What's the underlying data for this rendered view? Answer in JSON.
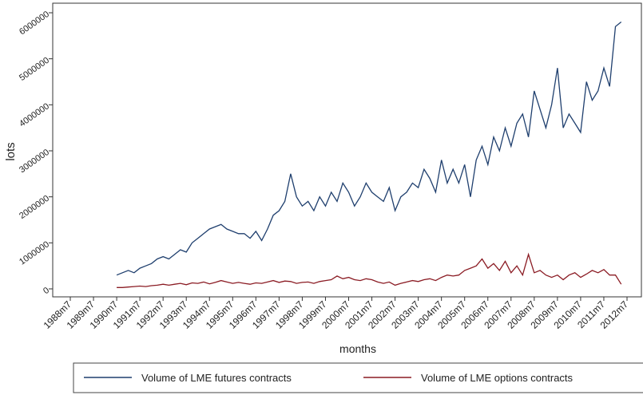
{
  "chart_data": {
    "type": "line",
    "x_label": "months",
    "y_label": "lots",
    "x": [
      366,
      369,
      372,
      375,
      378,
      381,
      384,
      387,
      390,
      393,
      396,
      399,
      402,
      405,
      408,
      411,
      414,
      417,
      420,
      423,
      426,
      429,
      432,
      435,
      438,
      441,
      444,
      447,
      450,
      453,
      456,
      459,
      462,
      465,
      468,
      471,
      474,
      477,
      480,
      483,
      486,
      489,
      492,
      495,
      498,
      501,
      504,
      507,
      510,
      513,
      516,
      519,
      522,
      525,
      528,
      531,
      534,
      537,
      540,
      543,
      546,
      549,
      552,
      555,
      558,
      561,
      564,
      567,
      570,
      573,
      576,
      579,
      582,
      585,
      588,
      591,
      594,
      597,
      600,
      603,
      606,
      609,
      612,
      615,
      618,
      621,
      624,
      627
    ],
    "series": [
      {
        "name": "Volume of LME futures contracts",
        "color": "#1f3f6e",
        "values": [
          300000,
          350000,
          400000,
          350000,
          450000,
          500000,
          550000,
          650000,
          700000,
          650000,
          750000,
          850000,
          800000,
          1000000,
          1100000,
          1200000,
          1300000,
          1350000,
          1400000,
          1300000,
          1250000,
          1200000,
          1200000,
          1100000,
          1250000,
          1050000,
          1300000,
          1600000,
          1700000,
          1900000,
          2500000,
          2000000,
          1800000,
          1900000,
          1700000,
          2000000,
          1800000,
          2100000,
          1900000,
          2300000,
          2100000,
          1800000,
          2000000,
          2300000,
          2100000,
          2000000,
          1900000,
          2200000,
          1700000,
          2000000,
          2100000,
          2300000,
          2200000,
          2600000,
          2400000,
          2100000,
          2800000,
          2300000,
          2600000,
          2300000,
          2700000,
          2000000,
          2800000,
          3100000,
          2700000,
          3300000,
          3000000,
          3500000,
          3100000,
          3600000,
          3800000,
          3300000,
          4300000,
          3900000,
          3500000,
          4000000,
          4800000,
          3500000,
          3800000,
          3600000,
          3400000,
          4500000,
          4100000,
          4300000,
          4800000,
          4400000,
          5700000,
          5800000
        ]
      },
      {
        "name": "Volume of LME options contracts",
        "color": "#8b1c24",
        "values": [
          30000,
          30000,
          40000,
          50000,
          60000,
          50000,
          70000,
          80000,
          100000,
          80000,
          100000,
          120000,
          90000,
          130000,
          120000,
          150000,
          110000,
          140000,
          180000,
          150000,
          120000,
          140000,
          120000,
          100000,
          130000,
          120000,
          150000,
          180000,
          140000,
          170000,
          160000,
          120000,
          140000,
          150000,
          120000,
          160000,
          180000,
          200000,
          280000,
          220000,
          250000,
          200000,
          180000,
          220000,
          200000,
          150000,
          120000,
          150000,
          80000,
          120000,
          150000,
          180000,
          160000,
          200000,
          220000,
          180000,
          250000,
          300000,
          280000,
          300000,
          400000,
          450000,
          500000,
          650000,
          450000,
          550000,
          400000,
          600000,
          350000,
          500000,
          300000,
          750000,
          350000,
          400000,
          300000,
          250000,
          300000,
          200000,
          300000,
          350000,
          250000,
          320000,
          400000,
          350000,
          420000,
          300000,
          300000,
          100000
        ]
      }
    ],
    "xlim": [
      342,
      630
    ],
    "xticks": [
      {
        "value": 342,
        "label": "1988m7"
      },
      {
        "value": 354,
        "label": "1989m7"
      },
      {
        "value": 366,
        "label": "1990m7"
      },
      {
        "value": 378,
        "label": "1991m7"
      },
      {
        "value": 390,
        "label": "1992m7"
      },
      {
        "value": 402,
        "label": "1993m7"
      },
      {
        "value": 414,
        "label": "1994m7"
      },
      {
        "value": 426,
        "label": "1995m7"
      },
      {
        "value": 438,
        "label": "1996m7"
      },
      {
        "value": 450,
        "label": "1997m7"
      },
      {
        "value": 462,
        "label": "1998m7"
      },
      {
        "value": 474,
        "label": "1999m7"
      },
      {
        "value": 486,
        "label": "2000m7"
      },
      {
        "value": 498,
        "label": "2001m7"
      },
      {
        "value": 510,
        "label": "2002m7"
      },
      {
        "value": 522,
        "label": "2003m7"
      },
      {
        "value": 534,
        "label": "2004m7"
      },
      {
        "value": 546,
        "label": "2005m7"
      },
      {
        "value": 558,
        "label": "2006m7"
      },
      {
        "value": 570,
        "label": "2007m7"
      },
      {
        "value": 582,
        "label": "2008m7"
      },
      {
        "value": 594,
        "label": "2009m7"
      },
      {
        "value": 606,
        "label": "2010m7"
      },
      {
        "value": 618,
        "label": "2011m7"
      },
      {
        "value": 630,
        "label": "2012m7"
      }
    ],
    "ylim": [
      0,
      6000000
    ],
    "yticks": [
      0,
      1000000,
      2000000,
      3000000,
      4000000,
      5000000,
      6000000
    ]
  }
}
